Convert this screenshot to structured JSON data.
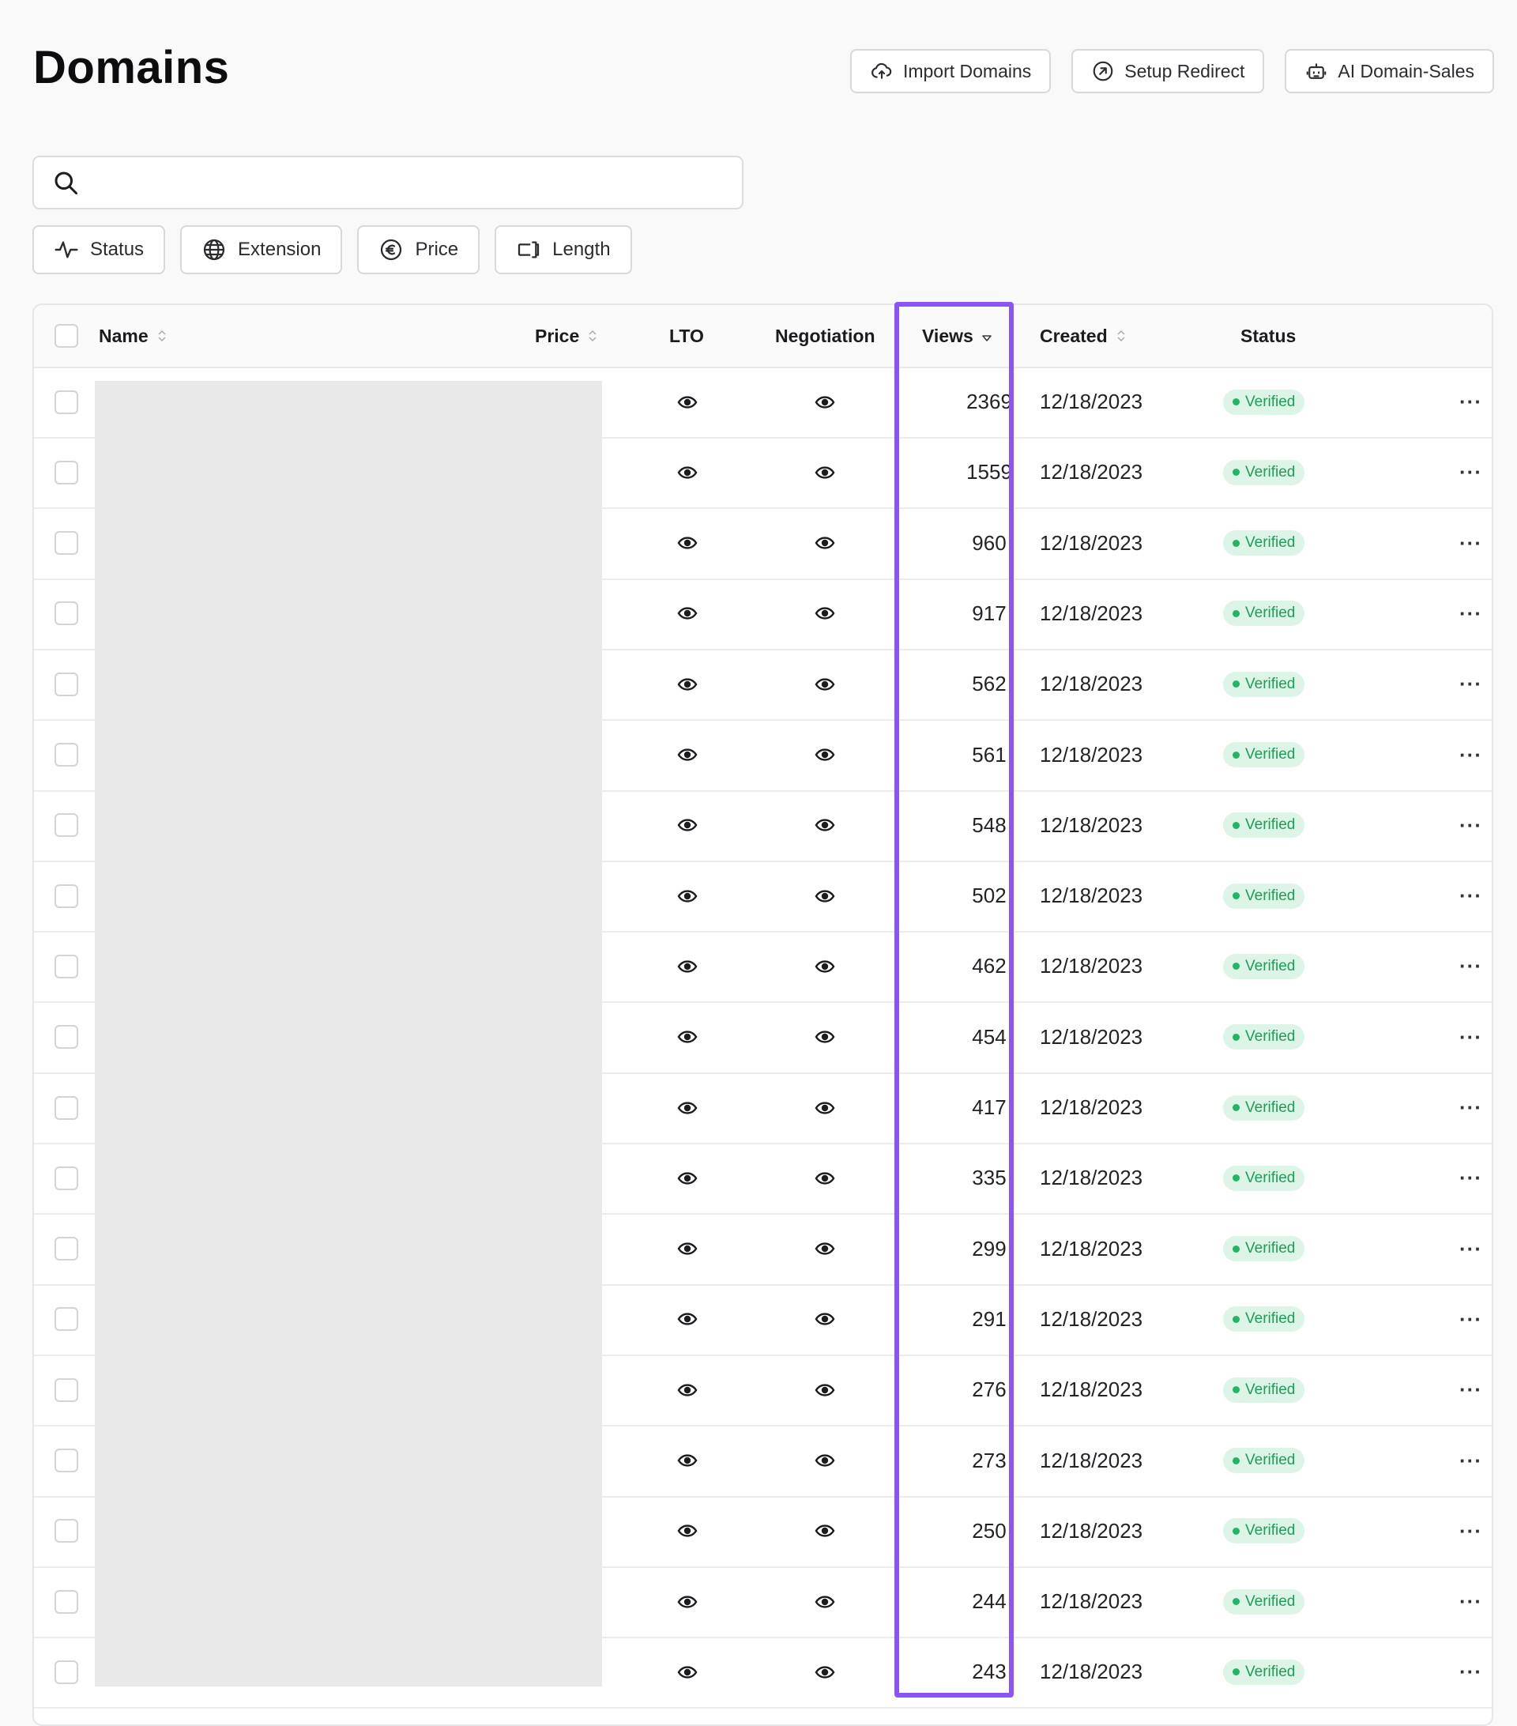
{
  "page": {
    "title": "Domains"
  },
  "actions": [
    {
      "label": "Import Domains",
      "icon": "cloud-upload-icon"
    },
    {
      "label": "Setup Redirect",
      "icon": "redirect-arrow-icon"
    },
    {
      "label": "AI Domain-Sales",
      "icon": "robot-icon"
    }
  ],
  "search": {
    "value": "",
    "placeholder": ""
  },
  "filters": [
    {
      "label": "Status",
      "icon": "activity-icon"
    },
    {
      "label": "Extension",
      "icon": "globe-icon"
    },
    {
      "label": "Price",
      "icon": "euro-icon"
    },
    {
      "label": "Length",
      "icon": "text-length-icon"
    }
  ],
  "table": {
    "columns": {
      "name": "Name",
      "price": "Price",
      "lto": "LTO",
      "negotiation": "Negotiation",
      "views": "Views",
      "created": "Created",
      "status": "Status"
    },
    "sort": {
      "column": "Views",
      "direction": "descending"
    },
    "highlight_color": "#8b55f5",
    "rows": [
      {
        "views": "2369",
        "created": "12/18/2023",
        "status": "Verified"
      },
      {
        "views": "1559",
        "created": "12/18/2023",
        "status": "Verified"
      },
      {
        "views": "960",
        "created": "12/18/2023",
        "status": "Verified"
      },
      {
        "views": "917",
        "created": "12/18/2023",
        "status": "Verified"
      },
      {
        "views": "562",
        "created": "12/18/2023",
        "status": "Verified"
      },
      {
        "views": "561",
        "created": "12/18/2023",
        "status": "Verified"
      },
      {
        "views": "548",
        "created": "12/18/2023",
        "status": "Verified"
      },
      {
        "views": "502",
        "created": "12/18/2023",
        "status": "Verified"
      },
      {
        "views": "462",
        "created": "12/18/2023",
        "status": "Verified"
      },
      {
        "views": "454",
        "created": "12/18/2023",
        "status": "Verified"
      },
      {
        "views": "417",
        "created": "12/18/2023",
        "status": "Verified"
      },
      {
        "views": "335",
        "created": "12/18/2023",
        "status": "Verified"
      },
      {
        "views": "299",
        "created": "12/18/2023",
        "status": "Verified"
      },
      {
        "views": "291",
        "created": "12/18/2023",
        "status": "Verified"
      },
      {
        "views": "276",
        "created": "12/18/2023",
        "status": "Verified"
      },
      {
        "views": "273",
        "created": "12/18/2023",
        "status": "Verified"
      },
      {
        "views": "250",
        "created": "12/18/2023",
        "status": "Verified"
      },
      {
        "views": "244",
        "created": "12/18/2023",
        "status": "Verified"
      },
      {
        "views": "243",
        "created": "12/18/2023",
        "status": "Verified"
      }
    ]
  }
}
